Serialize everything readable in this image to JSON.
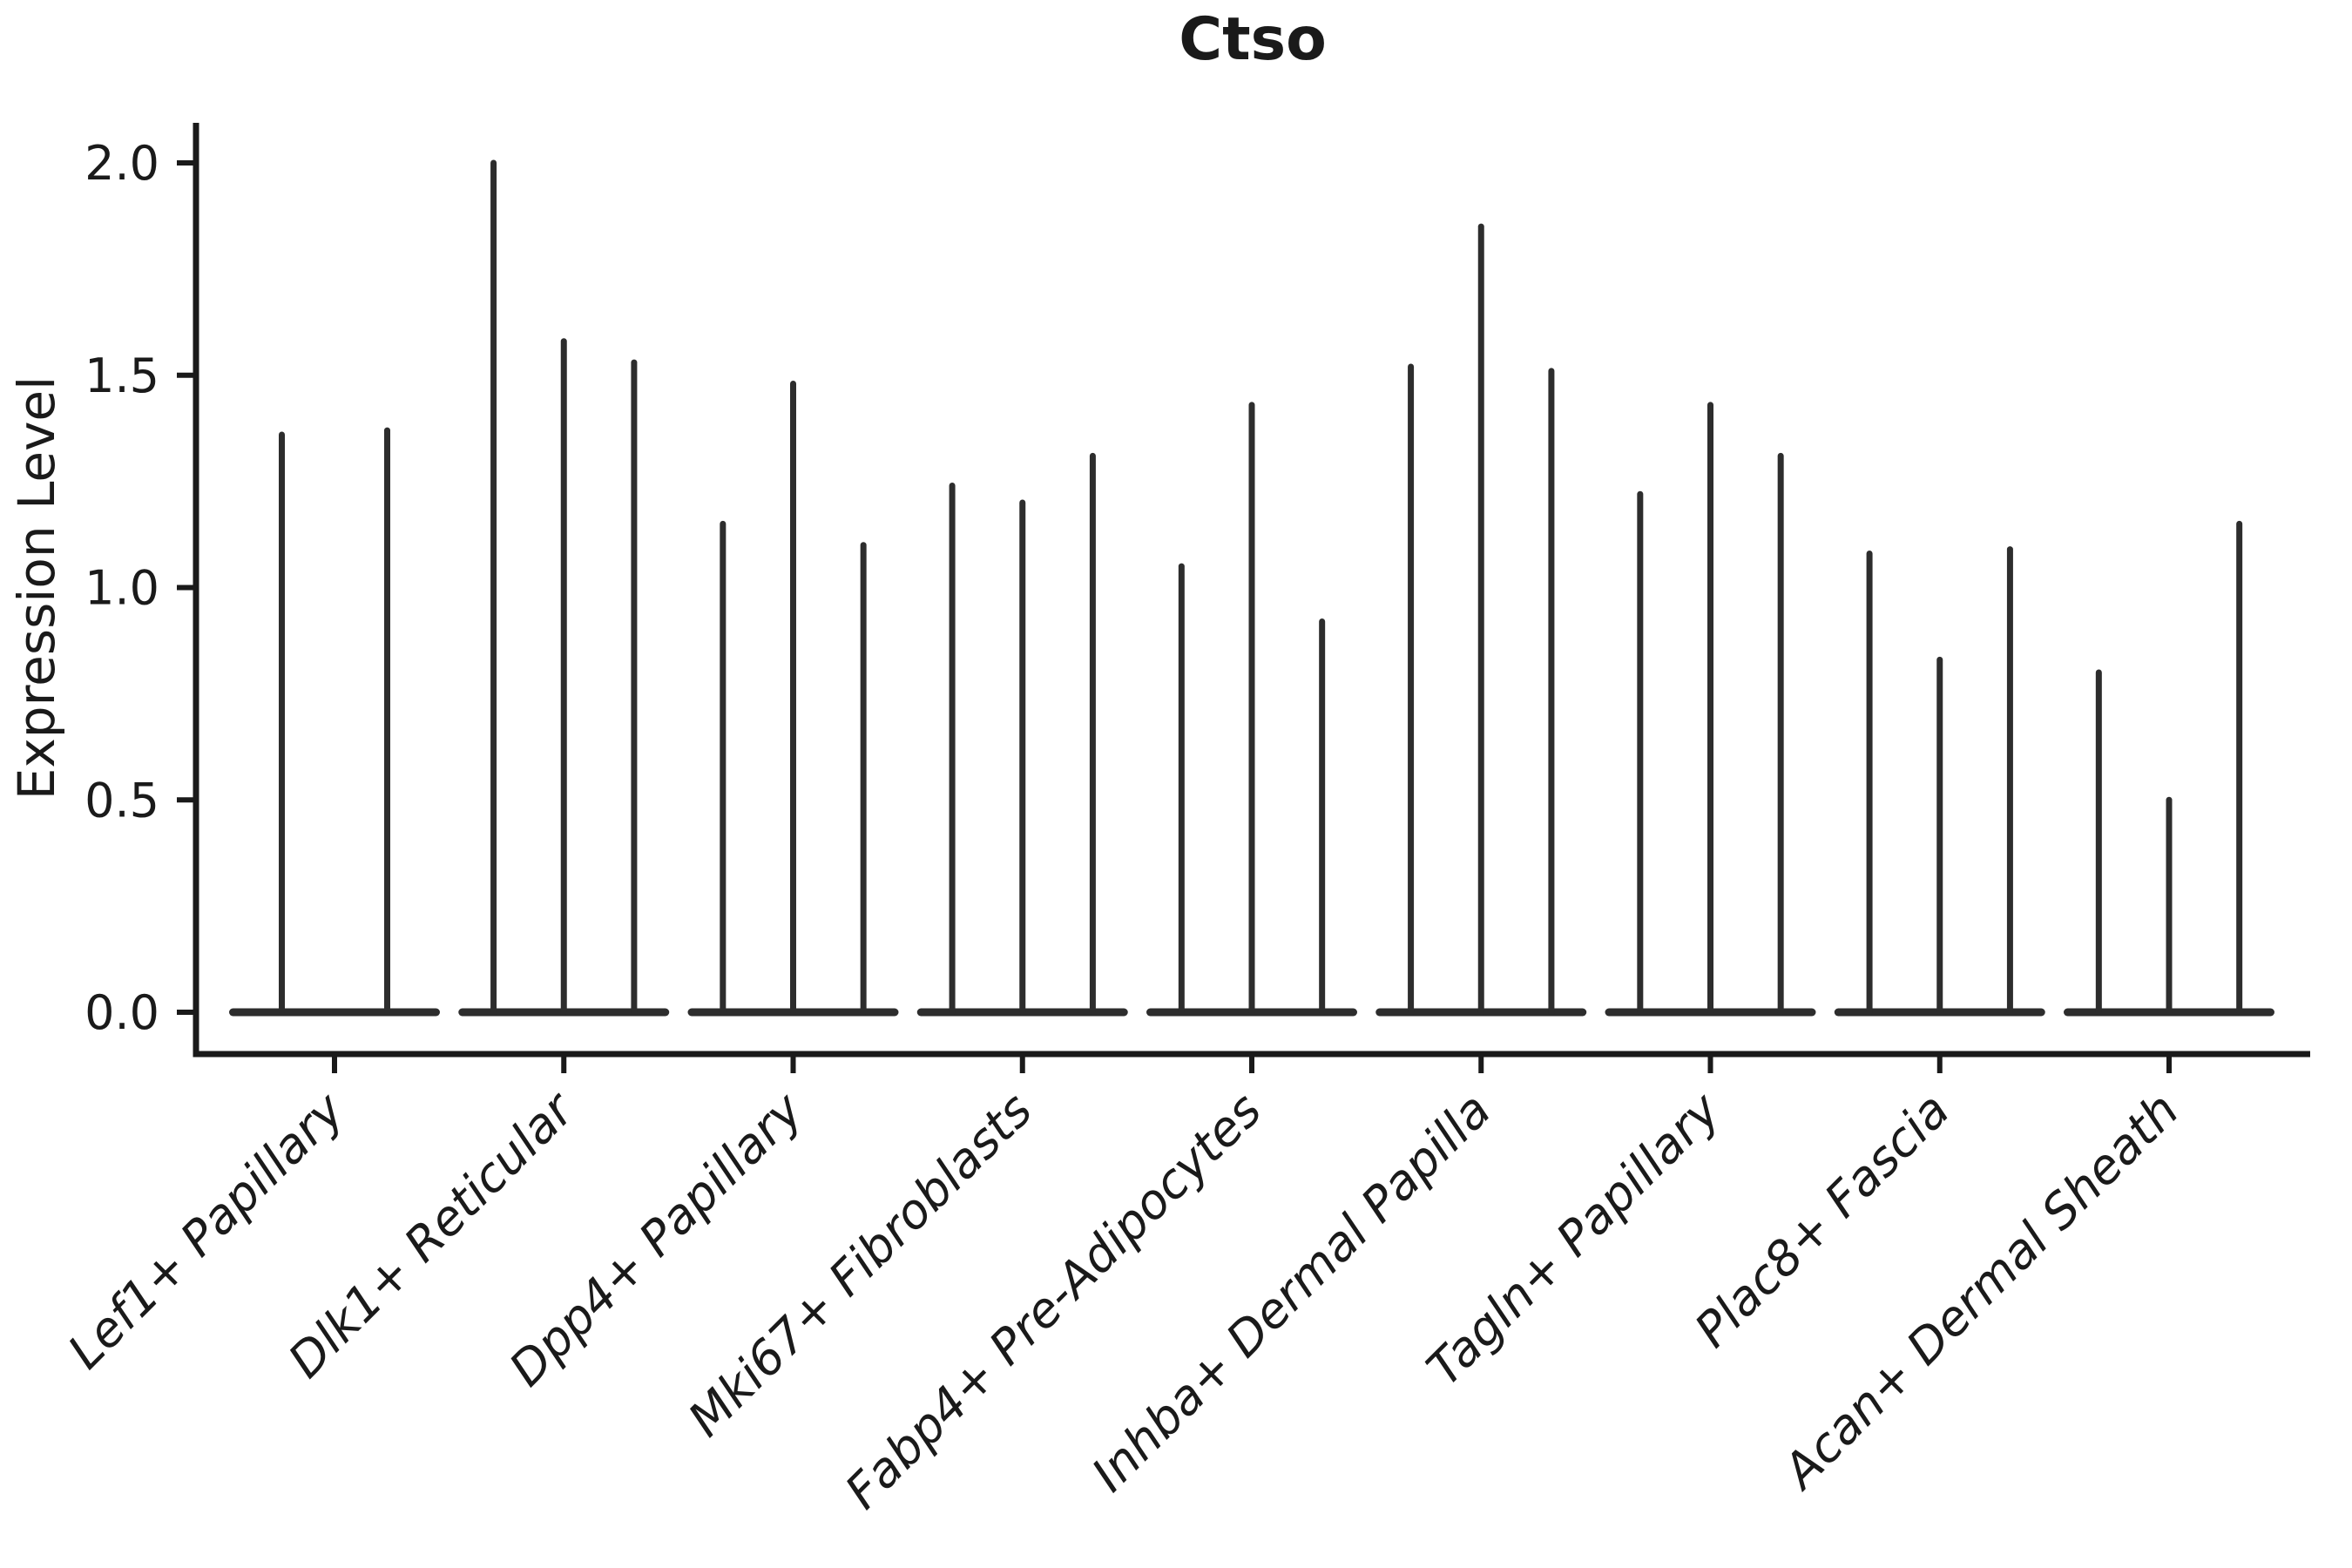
{
  "chart_data": {
    "type": "violin",
    "title": "Ctso",
    "ylabel": "Expression Level",
    "xlabel": "",
    "yticks": [
      "0.0",
      "0.5",
      "1.0",
      "1.5",
      "2.0"
    ],
    "ytick_values": [
      0.0,
      0.5,
      1.0,
      1.5,
      2.0
    ],
    "ylim": [
      -0.1,
      2.09
    ],
    "grid": false,
    "legend_position": "none",
    "categories": [
      "Lef1+ Papillary",
      "Dlk1+ Reticular",
      "Dpp4+ Papillary",
      "Mki67+ Fibroblasts",
      "Fabp4+ Pre-Adipocytes",
      "Inhba+ Dermal Papilla",
      "Tagln+ Papillary",
      "Plac8+ Fascia",
      "Acan+ Dermal Sheath"
    ],
    "groups": [
      {
        "category": "Lef1+ Papillary",
        "violin_maxima": [
          1.36,
          1.37
        ]
      },
      {
        "category": "Dlk1+ Reticular",
        "violin_maxima": [
          2.0,
          1.58,
          1.53
        ]
      },
      {
        "category": "Dpp4+ Papillary",
        "violin_maxima": [
          1.15,
          1.48,
          1.1
        ]
      },
      {
        "category": "Mki67+ Fibroblasts",
        "violin_maxima": [
          1.24,
          1.2,
          1.31
        ]
      },
      {
        "category": "Fabp4+ Pre-Adipocytes",
        "violin_maxima": [
          1.05,
          1.43,
          0.92
        ]
      },
      {
        "category": "Inhba+ Dermal Papilla",
        "violin_maxima": [
          1.52,
          1.85,
          1.51
        ]
      },
      {
        "category": "Tagln+ Papillary",
        "violin_maxima": [
          1.22,
          1.43,
          1.31
        ]
      },
      {
        "category": "Plac8+ Fascia",
        "violin_maxima": [
          1.08,
          0.83,
          1.09
        ]
      },
      {
        "category": "Acan+ Dermal Sheath",
        "violin_maxima": [
          0.8,
          0.5,
          1.15
        ]
      }
    ],
    "violin_baseline_value": 0.0,
    "colors": {
      "ink": "#1a1a1a",
      "violin": "#2d2d2d",
      "background": "#ffffff"
    }
  }
}
